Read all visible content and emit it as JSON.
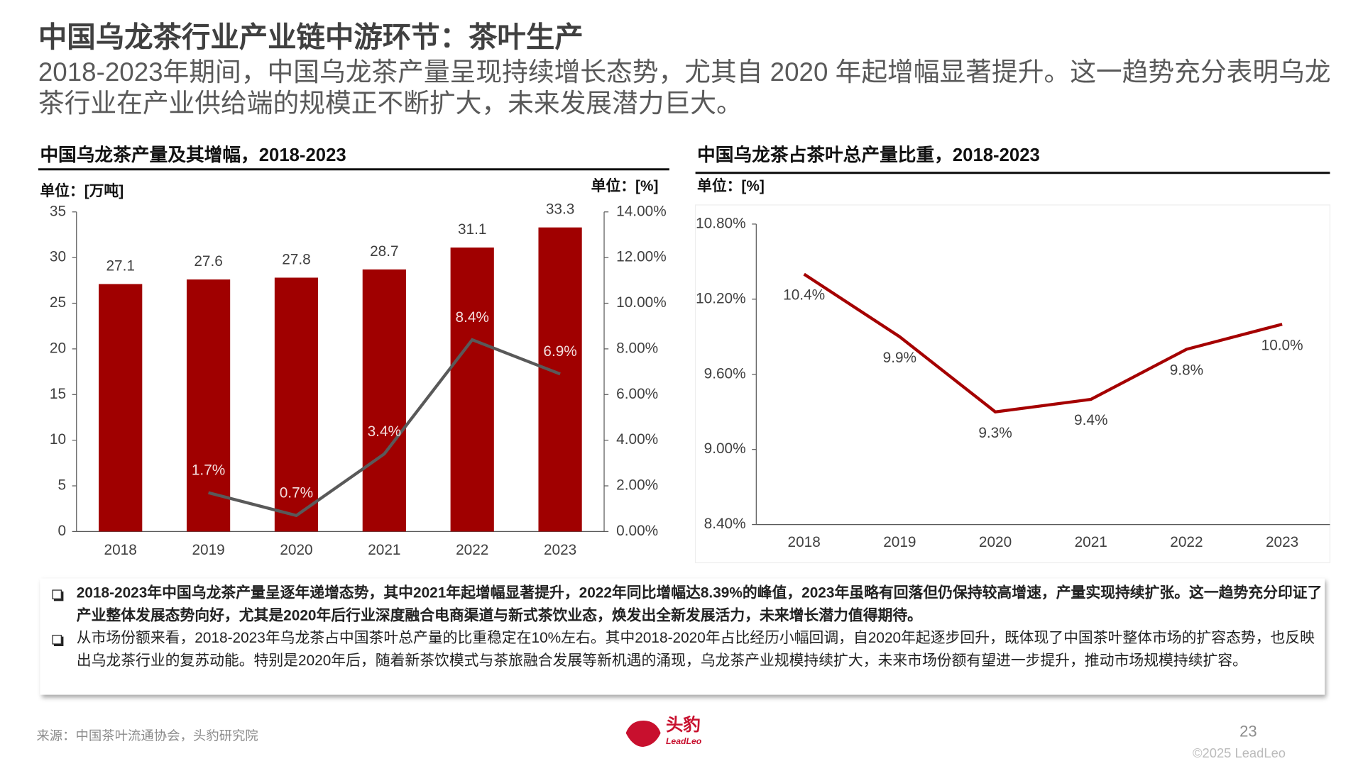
{
  "header": {
    "title": "中国乌龙茶行业产业链中游环节：茶叶生产",
    "subtitle": "2018-2023年期间，中国乌龙茶产量呈现持续增长态势，尤其自 2020 年起增幅显著提升。这一趋势充分表明乌龙茶行业在产业供给端的规模正不断扩大，未来发展潜力巨大。"
  },
  "chart_data": [
    {
      "type": "combo",
      "title": "中国乌龙茶产量及其增幅，2018-2023",
      "y_label": "单位：[万吨]",
      "y2_label": "单位：[%]",
      "categories": [
        "2018",
        "2019",
        "2020",
        "2021",
        "2022",
        "2023"
      ],
      "series": [
        {
          "type": "bar",
          "color": "#a00000",
          "values": [
            27.1,
            27.6,
            27.8,
            28.7,
            31.1,
            33.3
          ]
        },
        {
          "type": "line",
          "axis": "y2",
          "color": "#595959",
          "values": [
            null,
            1.7,
            0.7,
            3.4,
            8.4,
            6.9
          ],
          "value_labels": [
            null,
            "1.7%",
            "0.7%",
            "3.4%",
            "8.4%",
            "6.9%"
          ]
        }
      ],
      "ylim": [
        0,
        35
      ],
      "yticks": [
        0,
        5,
        10,
        15,
        20,
        25,
        30,
        35
      ],
      "y2lim": [
        0,
        14
      ],
      "y2ticks": [
        {
          "value": 0,
          "label": "0.00%"
        },
        {
          "value": 2,
          "label": "2.00%"
        },
        {
          "value": 4,
          "label": "4.00%"
        },
        {
          "value": 6,
          "label": "6.00%"
        },
        {
          "value": 8,
          "label": "8.00%"
        },
        {
          "value": 10,
          "label": "10.00%"
        },
        {
          "value": 12,
          "label": "12.00%"
        },
        {
          "value": 14,
          "label": "14.00%"
        }
      ]
    },
    {
      "type": "line",
      "title": "中国乌龙茶占茶叶总产量比重，2018-2023",
      "y_label": "单位：[%]",
      "categories": [
        "2018",
        "2019",
        "2020",
        "2021",
        "2022",
        "2023"
      ],
      "series": [
        {
          "color": "#a50000",
          "values": [
            10.4,
            9.9,
            9.3,
            9.4,
            9.8,
            10.0
          ],
          "value_labels": [
            "10.4%",
            "9.9%",
            "9.3%",
            "9.4%",
            "9.8%",
            "10.0%"
          ]
        }
      ],
      "ylim": [
        8.4,
        10.8
      ],
      "yticks": [
        {
          "value": 8.4,
          "label": "8.40%"
        },
        {
          "value": 9.0,
          "label": "9.00%"
        },
        {
          "value": 9.6,
          "label": "9.60%"
        },
        {
          "value": 10.2,
          "label": "10.20%"
        },
        {
          "value": 10.8,
          "label": "10.80%"
        }
      ]
    }
  ],
  "bullets": [
    "2018-2023年中国乌龙茶产量呈逐年递增态势，其中2021年起增幅显著提升，2022年同比增幅达8.39%的峰值，2023年虽略有回落但仍保持较高增速，产量实现持续扩张。这一趋势充分印证了产业整体发展态势向好，尤其是2020年后行业深度融合电商渠道与新式茶饮业态，焕发出全新发展活力，未来增长潜力值得期待。",
    "从市场份额来看，2018-2023年乌龙茶占中国茶叶总产量的比重稳定在10%左右。其中2018-2020年占比经历小幅回调，自2020年起逐步回升，既体现了中国茶叶整体市场的扩容态势，也反映出乌龙茶行业的复苏动能。特别是2020年后，随着新茶饮模式与茶旅融合发展等新机遇的涌现，乌龙茶产业规模持续扩大，未来市场份额有望进一步提升，推动市场规模持续扩容。"
  ],
  "footer": {
    "source": "来源：中国茶叶流通协会，头豹研究院",
    "page": "23",
    "copyright": "©2025 LeadLeo",
    "logo": "头豹",
    "logo_sub": "LeadLeo"
  }
}
